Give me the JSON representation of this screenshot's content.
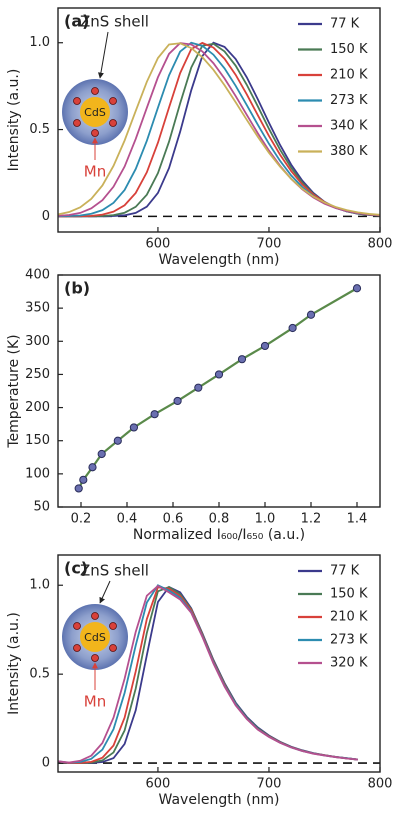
{
  "chart_data": [
    {
      "type": "line",
      "panel_label": "(a)",
      "xlabel": "Wavelength (nm)",
      "ylabel": "Intensity (a.u.)",
      "xlim": [
        510,
        800
      ],
      "xticks": [
        600,
        700,
        800
      ],
      "ylim": [
        -0.09,
        1.2
      ],
      "yticks": [
        0,
        0.5,
        {
          "value": 1,
          "label": "1.0"
        }
      ],
      "legend": "upper right",
      "baseline_dashed": true,
      "annotations": [
        "ZnS shell",
        "CdS",
        "Mn"
      ],
      "x": [
        510,
        520,
        530,
        540,
        550,
        560,
        570,
        580,
        590,
        600,
        610,
        620,
        630,
        640,
        650,
        660,
        670,
        680,
        690,
        700,
        710,
        720,
        730,
        740,
        750,
        760,
        770,
        780,
        790,
        800
      ],
      "series": [
        {
          "name": "77 K",
          "color": "#3b3a8c",
          "values": [
            0,
            0,
            0,
            0,
            0,
            0.002,
            0.006,
            0.02,
            0.056,
            0.135,
            0.278,
            0.487,
            0.726,
            0.923,
            1,
            0.976,
            0.906,
            0.801,
            0.674,
            0.539,
            0.411,
            0.298,
            0.206,
            0.135,
            0.084,
            0.05,
            0.029,
            0.015,
            0.008,
            0.004
          ]
        },
        {
          "name": "150 K",
          "color": "#4a7a55",
          "values": [
            0,
            0,
            0,
            0.001,
            0.002,
            0.007,
            0.021,
            0.055,
            0.125,
            0.249,
            0.43,
            0.651,
            0.857,
            0.983,
            0.994,
            0.95,
            0.868,
            0.758,
            0.633,
            0.504,
            0.384,
            0.28,
            0.194,
            0.129,
            0.082,
            0.05,
            0.029,
            0.016,
            0.009,
            0.004
          ]
        },
        {
          "name": "210 K",
          "color": "#d8413a",
          "values": [
            0,
            0,
            0.001,
            0.003,
            0.01,
            0.027,
            0.064,
            0.135,
            0.254,
            0.424,
            0.627,
            0.825,
            0.963,
            0.999,
            0.972,
            0.908,
            0.815,
            0.703,
            0.582,
            0.463,
            0.355,
            0.261,
            0.184,
            0.125,
            0.082,
            0.051,
            0.031,
            0.018,
            0.01,
            0.005
          ]
        },
        {
          "name": "273 K",
          "color": "#2c8cb0",
          "values": [
            0.001,
            0.002,
            0.005,
            0.015,
            0.036,
            0.078,
            0.152,
            0.273,
            0.435,
            0.626,
            0.812,
            0.949,
            1,
            0.982,
            0.931,
            0.852,
            0.752,
            0.641,
            0.527,
            0.418,
            0.32,
            0.236,
            0.169,
            0.116,
            0.077,
            0.049,
            0.03,
            0.018,
            0.011,
            0.006
          ]
        },
        {
          "name": "340 K",
          "color": "#b5508f",
          "values": [
            0.003,
            0.008,
            0.02,
            0.046,
            0.093,
            0.171,
            0.287,
            0.446,
            0.625,
            0.801,
            0.936,
            0.998,
            0.99,
            0.95,
            0.882,
            0.794,
            0.693,
            0.585,
            0.478,
            0.379,
            0.291,
            0.216,
            0.156,
            0.109,
            0.073,
            0.048,
            0.03,
            0.019,
            0.011,
            0.006
          ]
        },
        {
          "name": "380 K",
          "color": "#c9b15a",
          "values": [
            0.011,
            0.025,
            0.052,
            0.101,
            0.178,
            0.291,
            0.437,
            0.607,
            0.775,
            0.912,
            0.99,
            0.997,
            0.969,
            0.917,
            0.844,
            0.755,
            0.657,
            0.556,
            0.458,
            0.366,
            0.286,
            0.216,
            0.159,
            0.114,
            0.08,
            0.054,
            0.036,
            0.023,
            0.014,
            0.009
          ]
        }
      ]
    },
    {
      "type": "scatter",
      "panel_label": "(b)",
      "xlabel": "Normalized I₆₀₀/I₆₅₀ (a.u.)",
      "ylabel": "Temperature (K)",
      "xlim": [
        0.1,
        1.5
      ],
      "xticks": [
        0.2,
        0.4,
        0.6,
        0.8,
        {
          "value": 1,
          "label": "1.0"
        },
        1.2,
        1.4
      ],
      "ylim": [
        50,
        400
      ],
      "yticks": [
        50,
        100,
        150,
        200,
        250,
        300,
        350,
        400
      ],
      "line_color": "#5a8a4a",
      "marker_color": "#6a6fb0",
      "x": [
        0.19,
        0.21,
        0.25,
        0.29,
        0.36,
        0.43,
        0.52,
        0.62,
        0.71,
        0.8,
        0.9,
        1.0,
        1.12,
        1.2,
        1.4
      ],
      "values": [
        78,
        91,
        110,
        130,
        150,
        170,
        190,
        210,
        230,
        250,
        273,
        293,
        320,
        340,
        380
      ]
    },
    {
      "type": "line",
      "panel_label": "(c)",
      "xlabel": "Wavelength (nm)",
      "ylabel": "Intensity (a.u.)",
      "xlim": [
        510,
        800
      ],
      "xticks": [
        600,
        700,
        800
      ],
      "ylim": [
        -0.05,
        1.17
      ],
      "yticks": [
        0,
        0.5,
        {
          "value": 1,
          "label": "1.0"
        }
      ],
      "legend": "upper right",
      "baseline_dashed": true,
      "annotations": [
        "ZnS shell",
        "CdS",
        "Mn"
      ],
      "x": [
        510,
        520,
        530,
        540,
        550,
        560,
        570,
        580,
        590,
        600,
        610,
        620,
        630,
        640,
        650,
        660,
        670,
        680,
        690,
        700,
        710,
        720,
        730,
        740,
        750,
        760,
        770,
        780
      ],
      "series": [
        {
          "name": "77 K",
          "color": "#3b3a8c",
          "values": [
            0.01,
            0,
            0,
            0.001,
            0.006,
            0.028,
            0.108,
            0.297,
            0.607,
            0.906,
            0.99,
            0.96,
            0.87,
            0.73,
            0.58,
            0.45,
            0.34,
            0.26,
            0.2,
            0.155,
            0.12,
            0.092,
            0.072,
            0.056,
            0.045,
            0.035,
            0.028,
            0.02
          ]
        },
        {
          "name": "150 K",
          "color": "#4a7a55",
          "values": [
            0.01,
            0,
            0,
            0.003,
            0.015,
            0.06,
            0.184,
            0.419,
            0.732,
            0.966,
            0.99,
            0.95,
            0.865,
            0.725,
            0.575,
            0.445,
            0.335,
            0.255,
            0.195,
            0.152,
            0.118,
            0.09,
            0.07,
            0.055,
            0.044,
            0.035,
            0.027,
            0.02
          ]
        },
        {
          "name": "210 K",
          "color": "#d8413a",
          "values": [
            0.01,
            0,
            0.001,
            0.007,
            0.03,
            0.099,
            0.256,
            0.516,
            0.81,
            0.989,
            0.98,
            0.94,
            0.86,
            0.72,
            0.57,
            0.44,
            0.33,
            0.25,
            0.19,
            0.15,
            0.116,
            0.089,
            0.069,
            0.054,
            0.044,
            0.034,
            0.027,
            0.02
          ]
        },
        {
          "name": "273 K",
          "color": "#2c8cb0",
          "values": [
            0.01,
            0.002,
            0.006,
            0.024,
            0.076,
            0.191,
            0.395,
            0.662,
            0.903,
            1,
            0.97,
            0.93,
            0.85,
            0.715,
            0.565,
            0.435,
            0.33,
            0.25,
            0.19,
            0.148,
            0.115,
            0.088,
            0.068,
            0.054,
            0.043,
            0.034,
            0.027,
            0.02
          ]
        },
        {
          "name": "320 K",
          "color": "#b5508f",
          "values": [
            0.01,
            0.003,
            0.013,
            0.042,
            0.113,
            0.256,
            0.475,
            0.738,
            0.941,
            0.996,
            0.96,
            0.92,
            0.845,
            0.71,
            0.56,
            0.43,
            0.325,
            0.248,
            0.188,
            0.147,
            0.114,
            0.088,
            0.068,
            0.053,
            0.043,
            0.034,
            0.026,
            0.02
          ]
        }
      ]
    }
  ]
}
